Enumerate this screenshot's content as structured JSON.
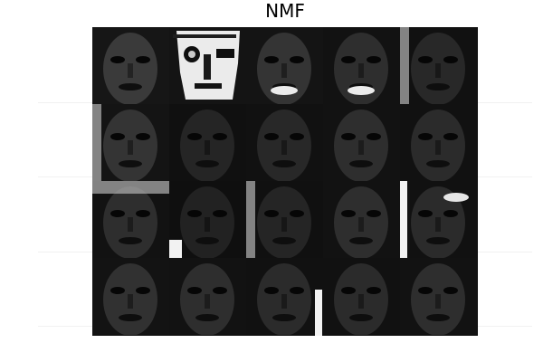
{
  "title": "NMF",
  "grid": {
    "rows": 4,
    "cols": 5,
    "tiles": [
      {
        "row": 0,
        "col": 0,
        "brightness": 0.55,
        "tone": "mid"
      },
      {
        "row": 0,
        "col": 1,
        "brightness": 0.95,
        "tone": "high-contrast"
      },
      {
        "row": 0,
        "col": 2,
        "brightness": 0.45,
        "tone": "mouth-bright"
      },
      {
        "row": 0,
        "col": 3,
        "brightness": 0.35,
        "tone": "mouth-bright"
      },
      {
        "row": 0,
        "col": 4,
        "brightness": 0.25,
        "tone": "edge-bright"
      },
      {
        "row": 1,
        "col": 0,
        "brightness": 0.45,
        "tone": "edge-bright"
      },
      {
        "row": 1,
        "col": 1,
        "brightness": 0.2,
        "tone": "dark"
      },
      {
        "row": 1,
        "col": 2,
        "brightness": 0.25,
        "tone": "dark"
      },
      {
        "row": 1,
        "col": 3,
        "brightness": 0.35,
        "tone": "mid"
      },
      {
        "row": 1,
        "col": 4,
        "brightness": 0.3,
        "tone": "mid"
      },
      {
        "row": 2,
        "col": 0,
        "brightness": 0.35,
        "tone": "top-bright"
      },
      {
        "row": 2,
        "col": 1,
        "brightness": 0.15,
        "tone": "dark"
      },
      {
        "row": 2,
        "col": 2,
        "brightness": 0.2,
        "tone": "edge-bright"
      },
      {
        "row": 2,
        "col": 3,
        "brightness": 0.35,
        "tone": "mid"
      },
      {
        "row": 2,
        "col": 4,
        "brightness": 0.3,
        "tone": "spot-bright"
      },
      {
        "row": 3,
        "col": 0,
        "brightness": 0.4,
        "tone": "mid"
      },
      {
        "row": 3,
        "col": 1,
        "brightness": 0.35,
        "tone": "mid"
      },
      {
        "row": 3,
        "col": 2,
        "brightness": 0.3,
        "tone": "mid"
      },
      {
        "row": 3,
        "col": 3,
        "brightness": 0.3,
        "tone": "dark"
      },
      {
        "row": 3,
        "col": 4,
        "brightness": 0.35,
        "tone": "mid"
      }
    ]
  }
}
